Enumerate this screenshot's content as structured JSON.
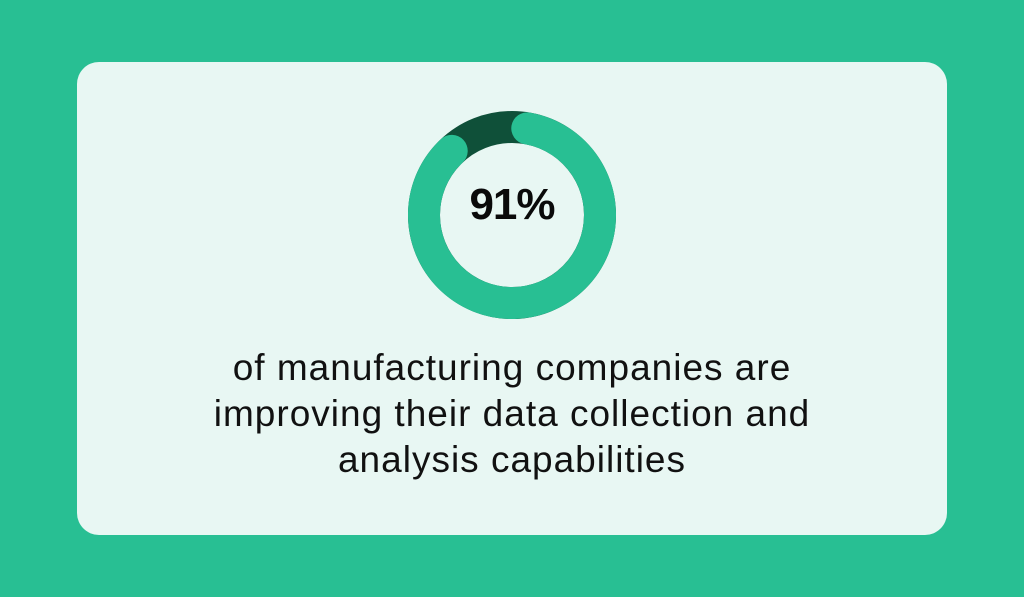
{
  "chart_data": {
    "type": "pie",
    "variant": "donut",
    "value_percent": 91,
    "label": "91%",
    "caption_lines": [
      "of manufacturing companies are",
      "improving their data collection and",
      "analysis capabilities"
    ],
    "colors": {
      "background": "#28bf93",
      "card": "#e8f7f3",
      "filled": "#28bf93",
      "remainder": "#0f5039",
      "text": "#111111"
    }
  }
}
